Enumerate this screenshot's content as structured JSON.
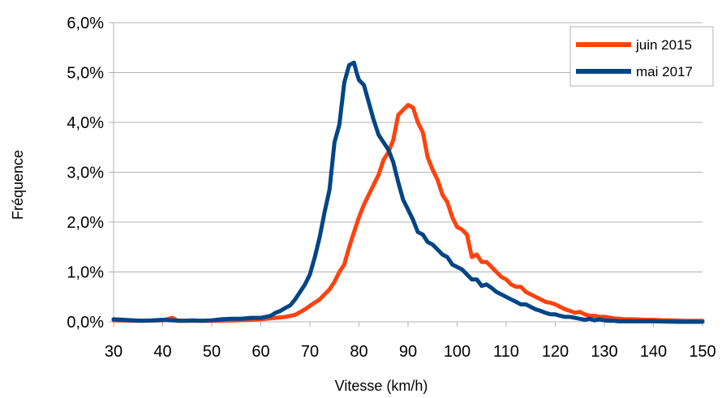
{
  "chart_data": {
    "type": "line",
    "title": "",
    "xlabel": "Vitesse (km/h)",
    "ylabel": "Fréquence",
    "xlim": [
      30,
      150
    ],
    "ylim": [
      0,
      6
    ],
    "x_ticks": [
      30,
      40,
      50,
      60,
      70,
      80,
      90,
      100,
      110,
      120,
      130,
      140,
      150
    ],
    "y_ticks": [
      0,
      1,
      2,
      3,
      4,
      5,
      6
    ],
    "y_tick_labels": [
      "0,0%",
      "1,0%",
      "2,0%",
      "3,0%",
      "4,0%",
      "5,0%",
      "6,0%"
    ],
    "grid": "horizontal",
    "legend_position": "top-right",
    "series": [
      {
        "name": "juin 2015",
        "color": "#ff420e",
        "points": [
          [
            30,
            0.03
          ],
          [
            35,
            0.02
          ],
          [
            40,
            0.03
          ],
          [
            42,
            0.08
          ],
          [
            43,
            0.02
          ],
          [
            50,
            0.02
          ],
          [
            55,
            0.03
          ],
          [
            60,
            0.05
          ],
          [
            63,
            0.08
          ],
          [
            65,
            0.1
          ],
          [
            67,
            0.14
          ],
          [
            69,
            0.25
          ],
          [
            70,
            0.32
          ],
          [
            72,
            0.45
          ],
          [
            74,
            0.65
          ],
          [
            75,
            0.8
          ],
          [
            76,
            1.0
          ],
          [
            77,
            1.15
          ],
          [
            78,
            1.5
          ],
          [
            79,
            1.8
          ],
          [
            80,
            2.1
          ],
          [
            81,
            2.35
          ],
          [
            82,
            2.55
          ],
          [
            83,
            2.75
          ],
          [
            84,
            2.95
          ],
          [
            85,
            3.25
          ],
          [
            86,
            3.4
          ],
          [
            87,
            3.65
          ],
          [
            88,
            4.15
          ],
          [
            88.5,
            4.2
          ],
          [
            89,
            4.25
          ],
          [
            90,
            4.35
          ],
          [
            91,
            4.3
          ],
          [
            92,
            4.0
          ],
          [
            93,
            3.8
          ],
          [
            94,
            3.3
          ],
          [
            95,
            3.05
          ],
          [
            96,
            2.85
          ],
          [
            97,
            2.55
          ],
          [
            98,
            2.4
          ],
          [
            99,
            2.1
          ],
          [
            100,
            1.9
          ],
          [
            101,
            1.85
          ],
          [
            102,
            1.75
          ],
          [
            103,
            1.3
          ],
          [
            104,
            1.35
          ],
          [
            105,
            1.2
          ],
          [
            106,
            1.2
          ],
          [
            107,
            1.1
          ],
          [
            108,
            1.0
          ],
          [
            109,
            0.9
          ],
          [
            110,
            0.85
          ],
          [
            111,
            0.75
          ],
          [
            112,
            0.7
          ],
          [
            113,
            0.7
          ],
          [
            114,
            0.6
          ],
          [
            115,
            0.55
          ],
          [
            116,
            0.5
          ],
          [
            117,
            0.45
          ],
          [
            118,
            0.4
          ],
          [
            119,
            0.38
          ],
          [
            120,
            0.35
          ],
          [
            121,
            0.3
          ],
          [
            122,
            0.25
          ],
          [
            123,
            0.22
          ],
          [
            124,
            0.18
          ],
          [
            125,
            0.2
          ],
          [
            126,
            0.15
          ],
          [
            127,
            0.12
          ],
          [
            128,
            0.12
          ],
          [
            129,
            0.1
          ],
          [
            130,
            0.1
          ],
          [
            132,
            0.07
          ],
          [
            134,
            0.05
          ],
          [
            136,
            0.05
          ],
          [
            138,
            0.04
          ],
          [
            140,
            0.04
          ],
          [
            142,
            0.03
          ],
          [
            144,
            0.03
          ],
          [
            146,
            0.02
          ],
          [
            148,
            0.02
          ],
          [
            150,
            0.02
          ]
        ]
      },
      {
        "name": "mai 2017",
        "color": "#004586",
        "points": [
          [
            30,
            0.05
          ],
          [
            32,
            0.04
          ],
          [
            34,
            0.03
          ],
          [
            36,
            0.02
          ],
          [
            38,
            0.03
          ],
          [
            40,
            0.04
          ],
          [
            42,
            0.03
          ],
          [
            44,
            0.02
          ],
          [
            46,
            0.03
          ],
          [
            48,
            0.02
          ],
          [
            50,
            0.03
          ],
          [
            52,
            0.05
          ],
          [
            54,
            0.06
          ],
          [
            56,
            0.06
          ],
          [
            58,
            0.08
          ],
          [
            60,
            0.08
          ],
          [
            61,
            0.1
          ],
          [
            62,
            0.12
          ],
          [
            63,
            0.18
          ],
          [
            64,
            0.22
          ],
          [
            65,
            0.28
          ],
          [
            66,
            0.33
          ],
          [
            67,
            0.45
          ],
          [
            68,
            0.6
          ],
          [
            69,
            0.75
          ],
          [
            70,
            0.95
          ],
          [
            71,
            1.3
          ],
          [
            72,
            1.7
          ],
          [
            73,
            2.2
          ],
          [
            74,
            2.65
          ],
          [
            75,
            3.6
          ],
          [
            76,
            3.95
          ],
          [
            77,
            4.8
          ],
          [
            78,
            5.15
          ],
          [
            79,
            5.2
          ],
          [
            79.5,
            5.0
          ],
          [
            80,
            4.85
          ],
          [
            81,
            4.75
          ],
          [
            82,
            4.4
          ],
          [
            83,
            4.05
          ],
          [
            84,
            3.75
          ],
          [
            85,
            3.6
          ],
          [
            86,
            3.45
          ],
          [
            87,
            3.2
          ],
          [
            88,
            2.8
          ],
          [
            89,
            2.45
          ],
          [
            90,
            2.25
          ],
          [
            91,
            2.05
          ],
          [
            92,
            1.8
          ],
          [
            93,
            1.75
          ],
          [
            94,
            1.6
          ],
          [
            95,
            1.55
          ],
          [
            96,
            1.45
          ],
          [
            97,
            1.35
          ],
          [
            98,
            1.3
          ],
          [
            99,
            1.15
          ],
          [
            100,
            1.1
          ],
          [
            101,
            1.05
          ],
          [
            102,
            0.95
          ],
          [
            103,
            0.85
          ],
          [
            104,
            0.85
          ],
          [
            105,
            0.72
          ],
          [
            106,
            0.75
          ],
          [
            107,
            0.68
          ],
          [
            108,
            0.6
          ],
          [
            109,
            0.55
          ],
          [
            110,
            0.5
          ],
          [
            111,
            0.45
          ],
          [
            112,
            0.4
          ],
          [
            113,
            0.35
          ],
          [
            114,
            0.35
          ],
          [
            115,
            0.3
          ],
          [
            116,
            0.25
          ],
          [
            117,
            0.22
          ],
          [
            118,
            0.18
          ],
          [
            119,
            0.15
          ],
          [
            120,
            0.15
          ],
          [
            121,
            0.12
          ],
          [
            122,
            0.1
          ],
          [
            123,
            0.1
          ],
          [
            124,
            0.08
          ],
          [
            125,
            0.06
          ],
          [
            126,
            0.04
          ],
          [
            127,
            0.06
          ],
          [
            128,
            0.03
          ],
          [
            129,
            0.05
          ],
          [
            130,
            0.03
          ],
          [
            131,
            0.02
          ],
          [
            132,
            0.02
          ],
          [
            133,
            0.01
          ],
          [
            135,
            0.01
          ],
          [
            140,
            0.01
          ],
          [
            145,
            0.0
          ],
          [
            150,
            0.0
          ]
        ]
      }
    ]
  }
}
